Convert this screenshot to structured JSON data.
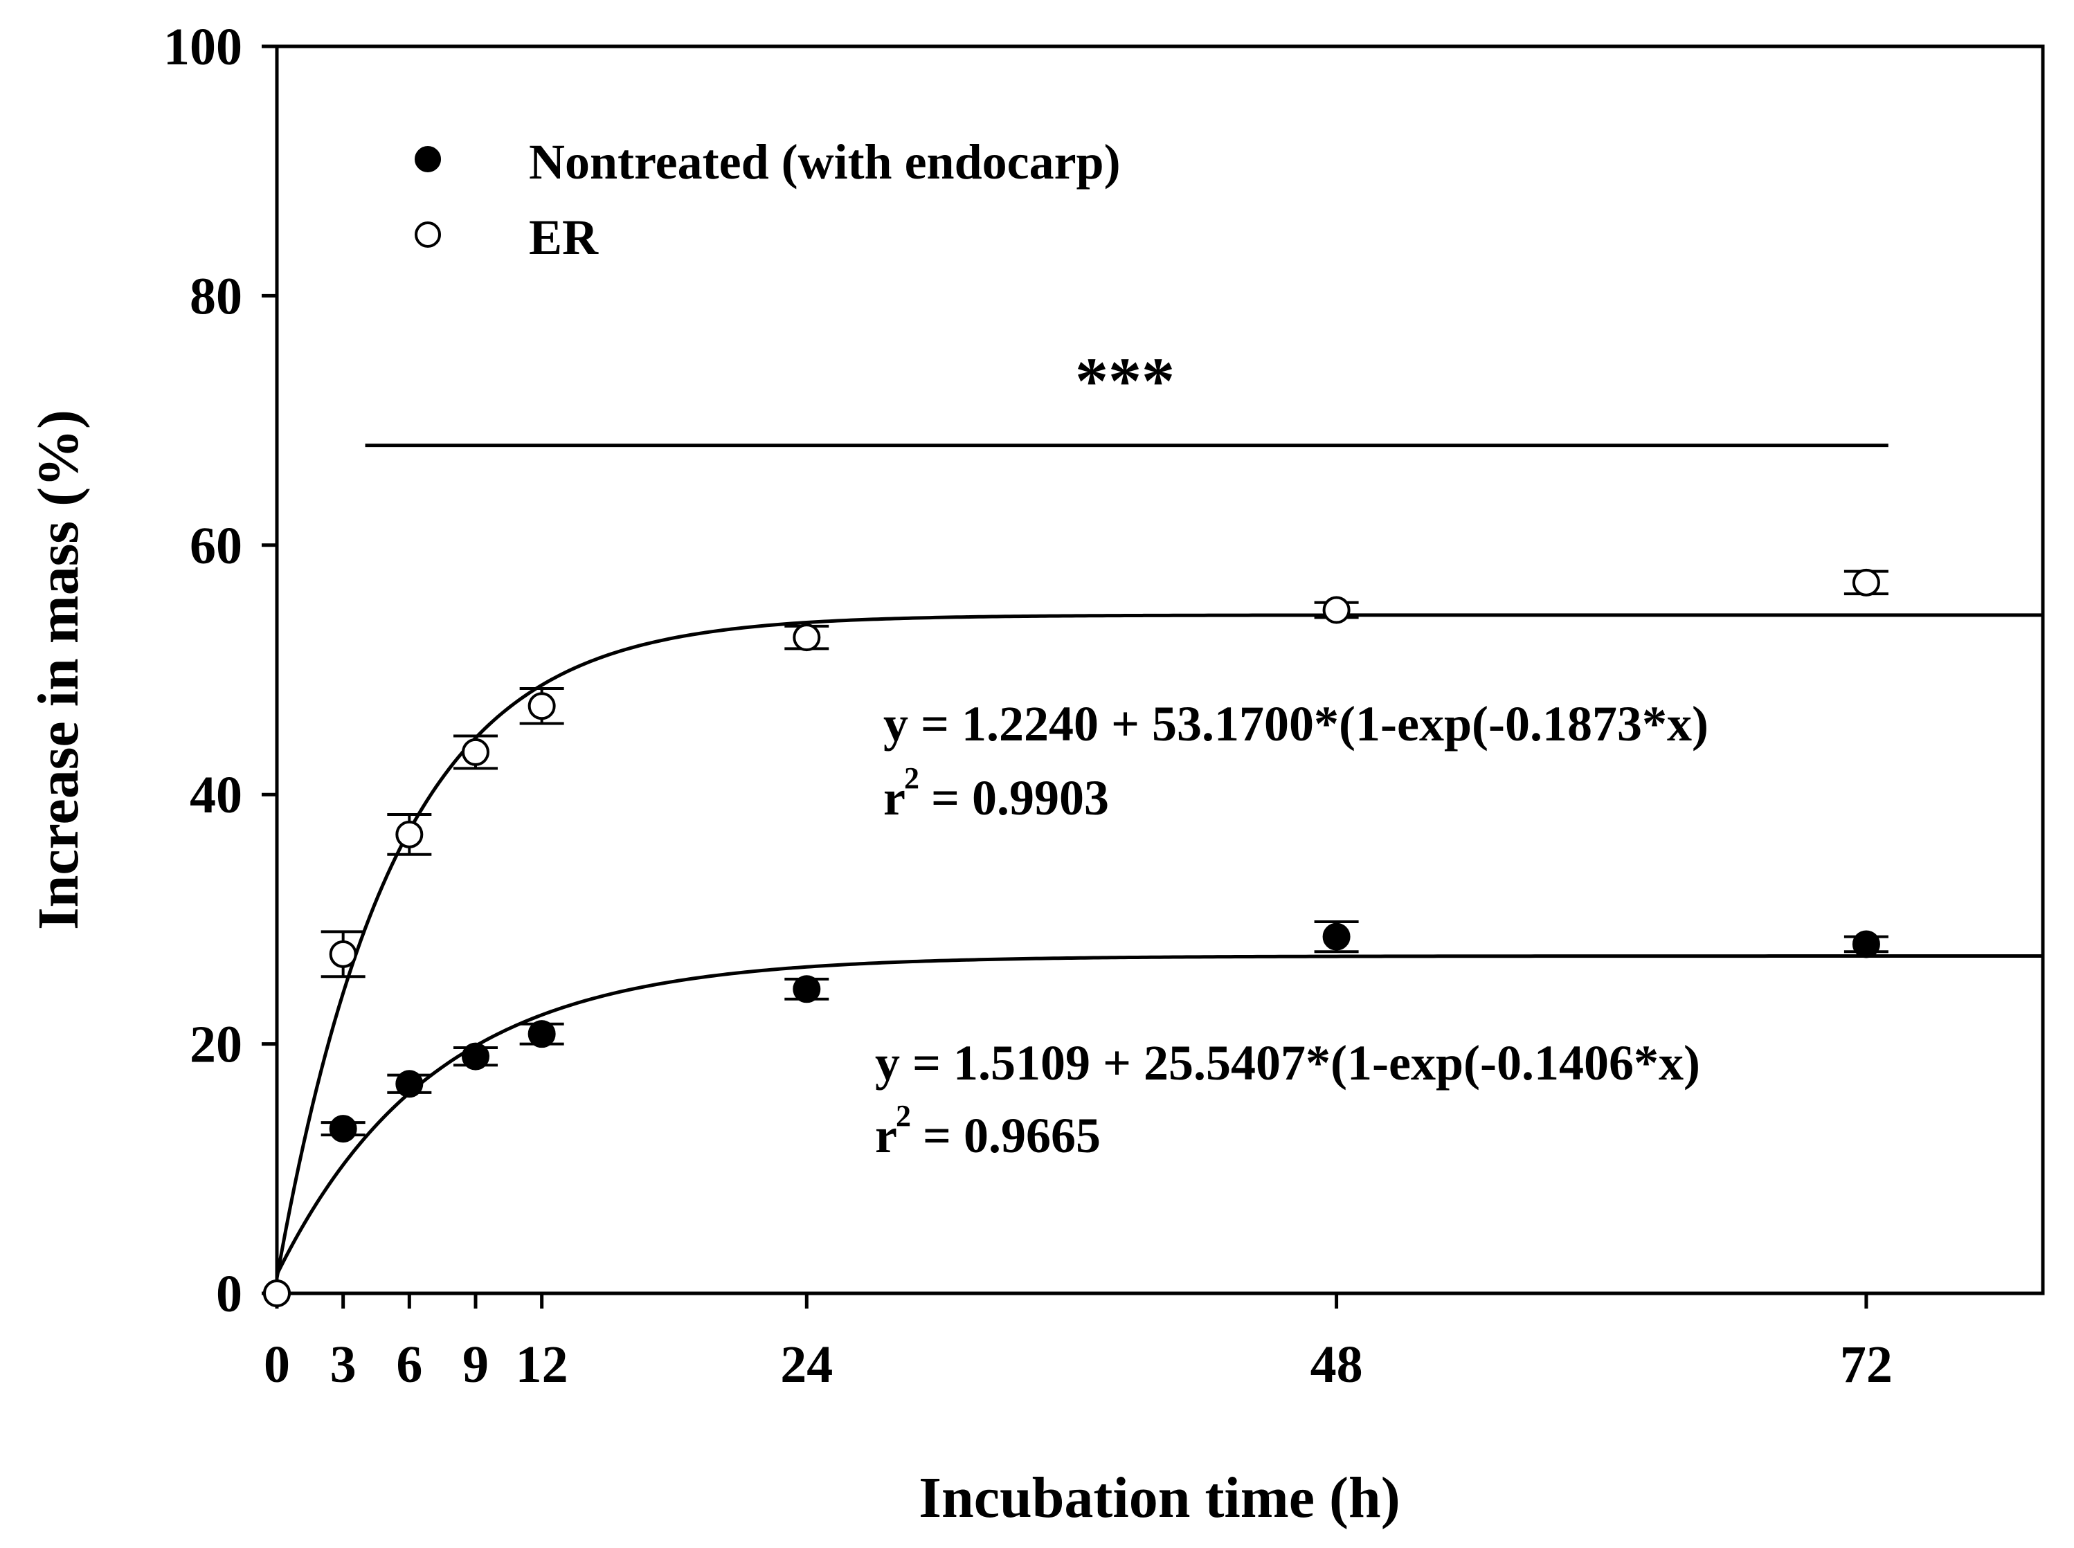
{
  "chart_data": {
    "type": "scatter",
    "xlabel": "Incubation time (h)",
    "ylabel": "Increase in mass (%)",
    "xlim": [
      0,
      80
    ],
    "ylim": [
      0,
      100
    ],
    "x_ticks": [
      0,
      3,
      6,
      9,
      12,
      24,
      48,
      72
    ],
    "y_ticks": [
      0,
      20,
      40,
      60,
      80,
      100
    ],
    "grid": false,
    "legend_position": "top-left",
    "series": [
      {
        "name": "Nontreated (with endocarp)",
        "marker": "filled-circle",
        "x": [
          0,
          3,
          6,
          9,
          12,
          24,
          48,
          72
        ],
        "y": [
          0,
          13.2,
          16.8,
          19.0,
          20.8,
          24.4,
          28.6,
          28.0
        ],
        "error": [
          0,
          0.5,
          0.7,
          0.7,
          0.8,
          0.8,
          1.2,
          0.6
        ],
        "fit": {
          "a": 1.5109,
          "b": 25.5407,
          "k": 0.1406
        }
      },
      {
        "name": "ER",
        "marker": "open-circle",
        "x": [
          0,
          3,
          6,
          9,
          12,
          24,
          48,
          72
        ],
        "y": [
          0,
          27.2,
          36.8,
          43.4,
          47.1,
          52.6,
          54.8,
          57.0
        ],
        "error": [
          0,
          1.8,
          1.6,
          1.3,
          1.4,
          0.9,
          0.6,
          0.9
        ],
        "fit": {
          "a": 1.224,
          "b": 53.17,
          "k": 0.1873
        }
      }
    ],
    "annotations": {
      "significance": "***",
      "eq_er": "y = 1.2240 + 53.1700*(1-exp(-0.1873*x)",
      "r2_er": "= 0.9903",
      "eq_nt": "y = 1.5109 + 25.5407*(1-exp(-0.1406*x)",
      "r2_nt": "= 0.9665",
      "r_symbol": "r",
      "r_exp": "2"
    },
    "significance_bar": {
      "x_from": 4,
      "x_to": 73,
      "y": 68
    }
  }
}
